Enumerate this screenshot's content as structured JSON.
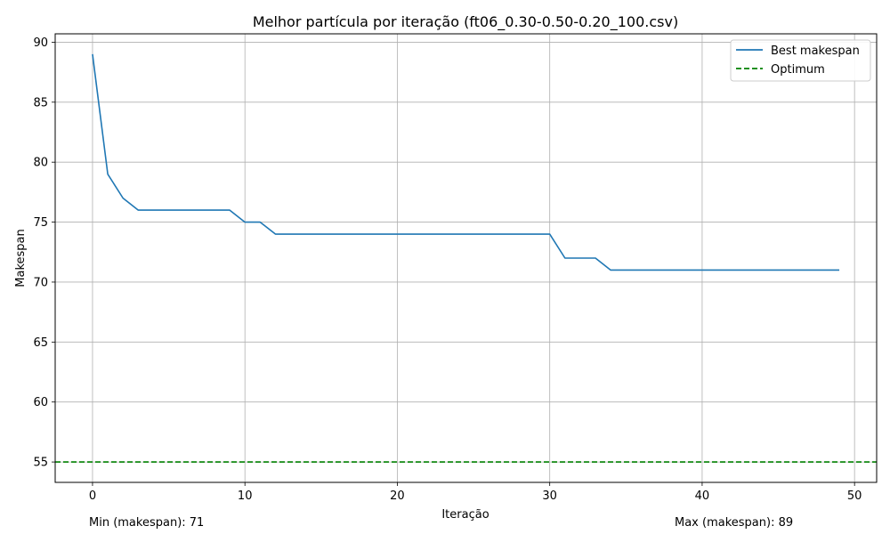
{
  "chart_data": {
    "type": "line",
    "title": "Melhor partícula por iteração (ft06_0.30-0.50-0.20_100.csv)",
    "xlabel": "Iteração",
    "ylabel": "Makespan",
    "xlim": [
      -2.45,
      51.45
    ],
    "ylim": [
      53.3,
      90.7
    ],
    "xticks": [
      0,
      10,
      20,
      30,
      40,
      50
    ],
    "yticks": [
      55,
      60,
      65,
      70,
      75,
      80,
      85,
      90
    ],
    "grid": true,
    "legend_position": "top-right",
    "series": [
      {
        "name": "Best makespan",
        "color": "#1f77b4",
        "style": "solid",
        "x": [
          0,
          1,
          2,
          3,
          4,
          5,
          6,
          7,
          8,
          9,
          10,
          11,
          12,
          13,
          14,
          15,
          16,
          17,
          18,
          19,
          20,
          21,
          22,
          23,
          24,
          25,
          26,
          27,
          28,
          29,
          30,
          31,
          32,
          33,
          34,
          35,
          36,
          37,
          38,
          39,
          40,
          41,
          42,
          43,
          44,
          45,
          46,
          47,
          48,
          49
        ],
        "values": [
          89,
          79,
          77,
          76,
          76,
          76,
          76,
          76,
          76,
          76,
          75,
          75,
          74,
          74,
          74,
          74,
          74,
          74,
          74,
          74,
          74,
          74,
          74,
          74,
          74,
          74,
          74,
          74,
          74,
          74,
          74,
          72,
          72,
          72,
          71,
          71,
          71,
          71,
          71,
          71,
          71,
          71,
          71,
          71,
          71,
          71,
          71,
          71,
          71,
          71
        ]
      },
      {
        "name": "Optimum",
        "color": "#008000",
        "style": "dashed",
        "constant": 55
      }
    ]
  },
  "footer": {
    "min_text": "Min (makespan): 71",
    "max_text": "Max (makespan): 89"
  }
}
